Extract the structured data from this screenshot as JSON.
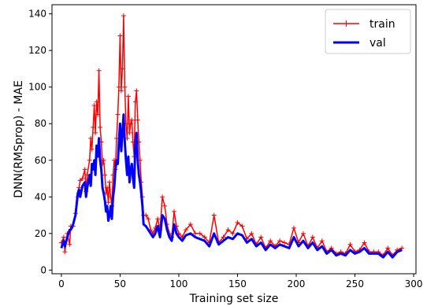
{
  "chart_data": {
    "type": "line",
    "xlabel": "Training set size",
    "ylabel": "DNN(RMSprop) - MAE",
    "xlim": [
      -8,
      302
    ],
    "ylim": [
      -2,
      145
    ],
    "xticks": [
      0,
      50,
      100,
      150,
      200,
      250,
      300
    ],
    "yticks": [
      0,
      20,
      40,
      60,
      80,
      100,
      120,
      140
    ],
    "legend_position": "top-right",
    "series": [
      {
        "name": "train",
        "color": "#ff0000",
        "marker": "+",
        "points": [
          [
            0,
            15
          ],
          [
            2,
            18
          ],
          [
            3,
            10
          ],
          [
            5,
            20
          ],
          [
            7,
            14
          ],
          [
            8,
            24
          ],
          [
            10,
            24
          ],
          [
            12,
            31
          ],
          [
            14,
            40
          ],
          [
            15,
            45
          ],
          [
            16,
            49
          ],
          [
            18,
            50
          ],
          [
            20,
            55
          ],
          [
            21,
            43
          ],
          [
            22,
            52
          ],
          [
            24,
            60
          ],
          [
            25,
            72
          ],
          [
            26,
            66
          ],
          [
            27,
            78
          ],
          [
            28,
            90
          ],
          [
            29,
            75
          ],
          [
            30,
            92
          ],
          [
            31,
            85
          ],
          [
            32,
            109
          ],
          [
            33,
            78
          ],
          [
            34,
            70
          ],
          [
            35,
            58
          ],
          [
            36,
            60
          ],
          [
            37,
            52
          ],
          [
            38,
            42
          ],
          [
            39,
            45
          ],
          [
            40,
            37
          ],
          [
            41,
            48
          ],
          [
            42,
            40
          ],
          [
            43,
            35
          ],
          [
            44,
            52
          ],
          [
            45,
            60
          ],
          [
            46,
            55
          ],
          [
            47,
            72
          ],
          [
            48,
            85
          ],
          [
            49,
            100
          ],
          [
            50,
            128
          ],
          [
            51,
            98
          ],
          [
            52,
            110
          ],
          [
            53,
            139
          ],
          [
            54,
            100
          ],
          [
            55,
            80
          ],
          [
            56,
            72
          ],
          [
            57,
            95
          ],
          [
            58,
            75
          ],
          [
            59,
            80
          ],
          [
            60,
            82
          ],
          [
            61,
            70
          ],
          [
            62,
            62
          ],
          [
            63,
            92
          ],
          [
            64,
            98
          ],
          [
            65,
            82
          ],
          [
            66,
            70
          ],
          [
            67,
            60
          ],
          [
            68,
            48
          ],
          [
            69,
            40
          ],
          [
            70,
            30
          ],
          [
            72,
            30
          ],
          [
            74,
            28
          ],
          [
            76,
            22
          ],
          [
            78,
            20
          ],
          [
            80,
            23
          ],
          [
            82,
            28
          ],
          [
            84,
            22
          ],
          [
            86,
            40
          ],
          [
            88,
            35
          ],
          [
            90,
            25
          ],
          [
            92,
            20
          ],
          [
            94,
            18
          ],
          [
            96,
            32
          ],
          [
            98,
            24
          ],
          [
            100,
            20
          ],
          [
            103,
            18
          ],
          [
            106,
            22
          ],
          [
            110,
            25
          ],
          [
            114,
            20
          ],
          [
            118,
            20
          ],
          [
            122,
            18
          ],
          [
            126,
            15
          ],
          [
            130,
            30
          ],
          [
            134,
            15
          ],
          [
            138,
            18
          ],
          [
            142,
            22
          ],
          [
            146,
            20
          ],
          [
            150,
            26
          ],
          [
            154,
            24
          ],
          [
            158,
            17
          ],
          [
            162,
            20
          ],
          [
            166,
            14
          ],
          [
            170,
            18
          ],
          [
            174,
            12
          ],
          [
            178,
            16
          ],
          [
            182,
            13
          ],
          [
            186,
            16
          ],
          [
            190,
            15
          ],
          [
            194,
            14
          ],
          [
            198,
            23
          ],
          [
            202,
            15
          ],
          [
            206,
            20
          ],
          [
            210,
            13
          ],
          [
            214,
            18
          ],
          [
            218,
            12
          ],
          [
            222,
            16
          ],
          [
            226,
            10
          ],
          [
            230,
            12
          ],
          [
            234,
            9
          ],
          [
            238,
            10
          ],
          [
            242,
            9
          ],
          [
            246,
            14
          ],
          [
            250,
            10
          ],
          [
            254,
            11
          ],
          [
            258,
            15
          ],
          [
            262,
            10
          ],
          [
            266,
            10
          ],
          [
            270,
            10
          ],
          [
            274,
            8
          ],
          [
            278,
            12
          ],
          [
            282,
            8
          ],
          [
            286,
            11
          ],
          [
            290,
            12
          ]
        ]
      },
      {
        "name": "val",
        "color": "#0000ff",
        "marker": "none",
        "points": [
          [
            0,
            12
          ],
          [
            2,
            16
          ],
          [
            3,
            13
          ],
          [
            5,
            18
          ],
          [
            7,
            22
          ],
          [
            8,
            22
          ],
          [
            10,
            25
          ],
          [
            12,
            30
          ],
          [
            14,
            42
          ],
          [
            15,
            44
          ],
          [
            16,
            40
          ],
          [
            18,
            46
          ],
          [
            20,
            48
          ],
          [
            21,
            40
          ],
          [
            22,
            45
          ],
          [
            24,
            52
          ],
          [
            25,
            46
          ],
          [
            26,
            58
          ],
          [
            27,
            55
          ],
          [
            28,
            60
          ],
          [
            29,
            52
          ],
          [
            30,
            68
          ],
          [
            31,
            62
          ],
          [
            32,
            72
          ],
          [
            33,
            60
          ],
          [
            34,
            55
          ],
          [
            35,
            45
          ],
          [
            36,
            42
          ],
          [
            37,
            38
          ],
          [
            38,
            32
          ],
          [
            39,
            35
          ],
          [
            40,
            27
          ],
          [
            41,
            30
          ],
          [
            42,
            35
          ],
          [
            43,
            28
          ],
          [
            44,
            40
          ],
          [
            45,
            45
          ],
          [
            46,
            55
          ],
          [
            47,
            60
          ],
          [
            48,
            58
          ],
          [
            49,
            70
          ],
          [
            50,
            80
          ],
          [
            51,
            65
          ],
          [
            52,
            75
          ],
          [
            53,
            85
          ],
          [
            54,
            70
          ],
          [
            55,
            60
          ],
          [
            56,
            52
          ],
          [
            57,
            62
          ],
          [
            58,
            48
          ],
          [
            59,
            55
          ],
          [
            60,
            58
          ],
          [
            61,
            50
          ],
          [
            62,
            45
          ],
          [
            63,
            70
          ],
          [
            64,
            75
          ],
          [
            65,
            60
          ],
          [
            66,
            52
          ],
          [
            67,
            48
          ],
          [
            68,
            42
          ],
          [
            69,
            35
          ],
          [
            70,
            25
          ],
          [
            72,
            24
          ],
          [
            74,
            22
          ],
          [
            76,
            20
          ],
          [
            78,
            18
          ],
          [
            80,
            20
          ],
          [
            82,
            24
          ],
          [
            84,
            18
          ],
          [
            86,
            30
          ],
          [
            88,
            28
          ],
          [
            90,
            22
          ],
          [
            92,
            18
          ],
          [
            94,
            16
          ],
          [
            96,
            25
          ],
          [
            98,
            20
          ],
          [
            100,
            18
          ],
          [
            103,
            16
          ],
          [
            106,
            19
          ],
          [
            110,
            20
          ],
          [
            114,
            18
          ],
          [
            118,
            17
          ],
          [
            122,
            16
          ],
          [
            126,
            13
          ],
          [
            130,
            20
          ],
          [
            134,
            14
          ],
          [
            138,
            16
          ],
          [
            142,
            18
          ],
          [
            146,
            17
          ],
          [
            150,
            20
          ],
          [
            154,
            19
          ],
          [
            158,
            15
          ],
          [
            162,
            17
          ],
          [
            166,
            13
          ],
          [
            170,
            15
          ],
          [
            174,
            11
          ],
          [
            178,
            14
          ],
          [
            182,
            12
          ],
          [
            186,
            14
          ],
          [
            190,
            13
          ],
          [
            194,
            12
          ],
          [
            198,
            18
          ],
          [
            202,
            13
          ],
          [
            206,
            16
          ],
          [
            210,
            12
          ],
          [
            214,
            15
          ],
          [
            218,
            11
          ],
          [
            222,
            13
          ],
          [
            226,
            9
          ],
          [
            230,
            11
          ],
          [
            234,
            8
          ],
          [
            238,
            9
          ],
          [
            242,
            8
          ],
          [
            246,
            11
          ],
          [
            250,
            9
          ],
          [
            254,
            10
          ],
          [
            258,
            12
          ],
          [
            262,
            9
          ],
          [
            266,
            9
          ],
          [
            270,
            9
          ],
          [
            274,
            7
          ],
          [
            278,
            10
          ],
          [
            282,
            7
          ],
          [
            286,
            10
          ],
          [
            290,
            11
          ]
        ]
      }
    ]
  }
}
